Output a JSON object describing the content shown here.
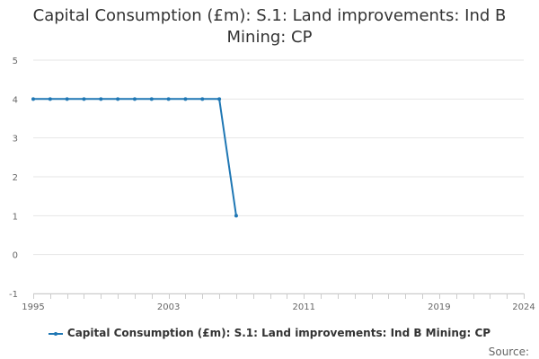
{
  "chart_data": {
    "type": "line",
    "title": "Capital Consumption (£m): S.1: Land improvements: Ind B Mining: CP",
    "title_lines": [
      "Capital Consumption (£m): S.1: Land improvements: Ind B",
      "Mining: CP"
    ],
    "xlabel": "",
    "ylabel": "",
    "xlim": [
      1995,
      2024
    ],
    "ylim": [
      -1,
      5
    ],
    "x_ticks": [
      1995,
      2003,
      2011,
      2019,
      2024
    ],
    "y_ticks": [
      -1,
      0,
      1,
      2,
      3,
      4,
      5
    ],
    "grid": true,
    "legend_position": "bottom",
    "series": [
      {
        "name": "Capital Consumption (£m): S.1: Land improvements: Ind B Mining: CP",
        "color": "#1f77b4",
        "x": [
          1995,
          1996,
          1997,
          1998,
          1999,
          2000,
          2001,
          2002,
          2003,
          2004,
          2005,
          2006,
          2007
        ],
        "values": [
          4,
          4,
          4,
          4,
          4,
          4,
          4,
          4,
          4,
          4,
          4,
          4,
          1
        ]
      }
    ]
  },
  "footer": {
    "source_label": "Source:"
  }
}
